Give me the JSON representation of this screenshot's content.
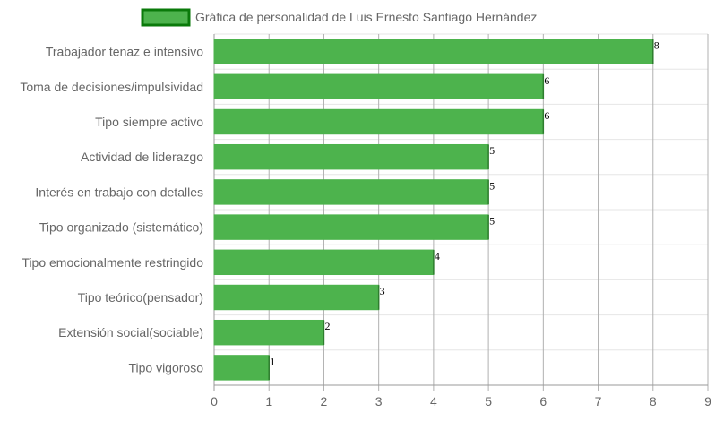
{
  "chart_data": {
    "type": "bar",
    "orientation": "horizontal",
    "categories": [
      "Trabajador tenaz e intensivo",
      "Toma de decisiones/impulsividad",
      "Tipo siempre activo",
      "Actividad de liderazgo",
      "Interés en trabajo con detalles",
      "Tipo organizado (sistemático)",
      "Tipo emocionalmente restringido",
      "Tipo teórico(pensador)",
      "Extensión social(sociable)",
      "Tipo vigoroso"
    ],
    "series": [
      {
        "name": "Gráfica de personalidad de Luis Ernesto Santiago Hernández",
        "values": [
          8,
          6,
          6,
          5,
          5,
          5,
          4,
          3,
          2,
          1
        ],
        "color": "#4db34d",
        "border_color": "#0a7a0a"
      }
    ],
    "xlim": [
      0,
      9
    ],
    "x_ticks": [
      0,
      1,
      2,
      3,
      4,
      5,
      6,
      7,
      8,
      9
    ],
    "grid": true,
    "legend_position": "top",
    "data_labels": true
  }
}
